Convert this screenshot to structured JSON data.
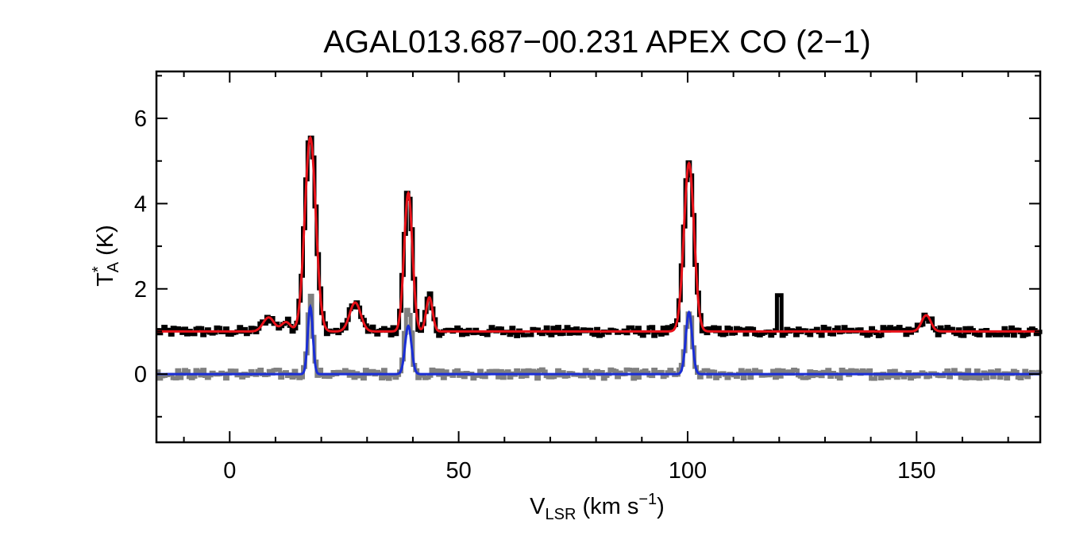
{
  "chart_data": {
    "type": "line",
    "title": "AGAL013.687−00.231   APEX CO (2−1)",
    "xlabel": {
      "main": "V",
      "sub": "LSR",
      "units": " (km s",
      "sup": "−1",
      "close": ")"
    },
    "ylabel": {
      "main": "T",
      "sup": "*",
      "sub": "A",
      "units": " (K)"
    },
    "xlim": [
      -16,
      177
    ],
    "ylim": [
      -1.6,
      7.1
    ],
    "x_ticks": [
      {
        "value": 0,
        "label": "0"
      },
      {
        "value": 50,
        "label": "50"
      },
      {
        "value": 100,
        "label": "100"
      },
      {
        "value": 150,
        "label": "150"
      }
    ],
    "y_ticks": [
      {
        "value": 0,
        "label": "0"
      },
      {
        "value": 2,
        "label": "2"
      },
      {
        "value": 4,
        "label": "4"
      },
      {
        "value": 6,
        "label": "6"
      }
    ],
    "x_minor_step": 10,
    "y_minor_step": 1,
    "x_step": 0.5,
    "grid": false,
    "series": [
      {
        "kind": "data-histogram",
        "color": "#000000",
        "baseline": 1.0,
        "noise": 0.07,
        "components": [
          {
            "center": 8.5,
            "amp": 0.33,
            "sigma": 1.2
          },
          {
            "center": 12.3,
            "amp": 0.22,
            "sigma": 1.0
          },
          {
            "center": 17.6,
            "amp": 4.65,
            "sigma": 1.2
          },
          {
            "center": 27.4,
            "amp": 0.68,
            "sigma": 1.2
          },
          {
            "center": 39.0,
            "amp": 3.3,
            "sigma": 0.9
          },
          {
            "center": 43.6,
            "amp": 0.8,
            "sigma": 0.7
          },
          {
            "center": 100.3,
            "amp": 3.95,
            "sigma": 1.1
          },
          {
            "center": 152.1,
            "amp": 0.38,
            "sigma": 1.0
          }
        ],
        "spikes": [
          {
            "x": 120.0,
            "value": 1.85
          }
        ]
      },
      {
        "kind": "fit-curve",
        "color": "#e8121a",
        "baseline": 1.0,
        "components": [
          {
            "center": 8.5,
            "amp": 0.33,
            "sigma": 1.2
          },
          {
            "center": 12.3,
            "amp": 0.22,
            "sigma": 1.0
          },
          {
            "center": 17.6,
            "amp": 4.55,
            "sigma": 1.2
          },
          {
            "center": 27.4,
            "amp": 0.68,
            "sigma": 1.2
          },
          {
            "center": 39.0,
            "amp": 3.25,
            "sigma": 0.9
          },
          {
            "center": 43.6,
            "amp": 0.8,
            "sigma": 0.7
          },
          {
            "center": 100.3,
            "amp": 3.95,
            "sigma": 1.1
          },
          {
            "center": 152.1,
            "amp": 0.38,
            "sigma": 1.0
          }
        ]
      },
      {
        "kind": "data-histogram",
        "color": "#808080",
        "baseline": 0.0,
        "noise": 0.07,
        "components": [
          {
            "center": 17.6,
            "amp": 1.85,
            "sigma": 0.55
          },
          {
            "center": 39.0,
            "amp": 1.6,
            "sigma": 0.7
          },
          {
            "center": 100.3,
            "amp": 1.5,
            "sigma": 0.7
          }
        ],
        "spikes": []
      },
      {
        "kind": "fit-curve",
        "color": "#1a2ed6",
        "baseline": 0.0,
        "components": [
          {
            "center": 17.6,
            "amp": 1.58,
            "sigma": 0.55
          },
          {
            "center": 39.0,
            "amp": 1.13,
            "sigma": 0.7
          },
          {
            "center": 100.3,
            "amp": 1.45,
            "sigma": 0.7
          }
        ]
      }
    ]
  }
}
